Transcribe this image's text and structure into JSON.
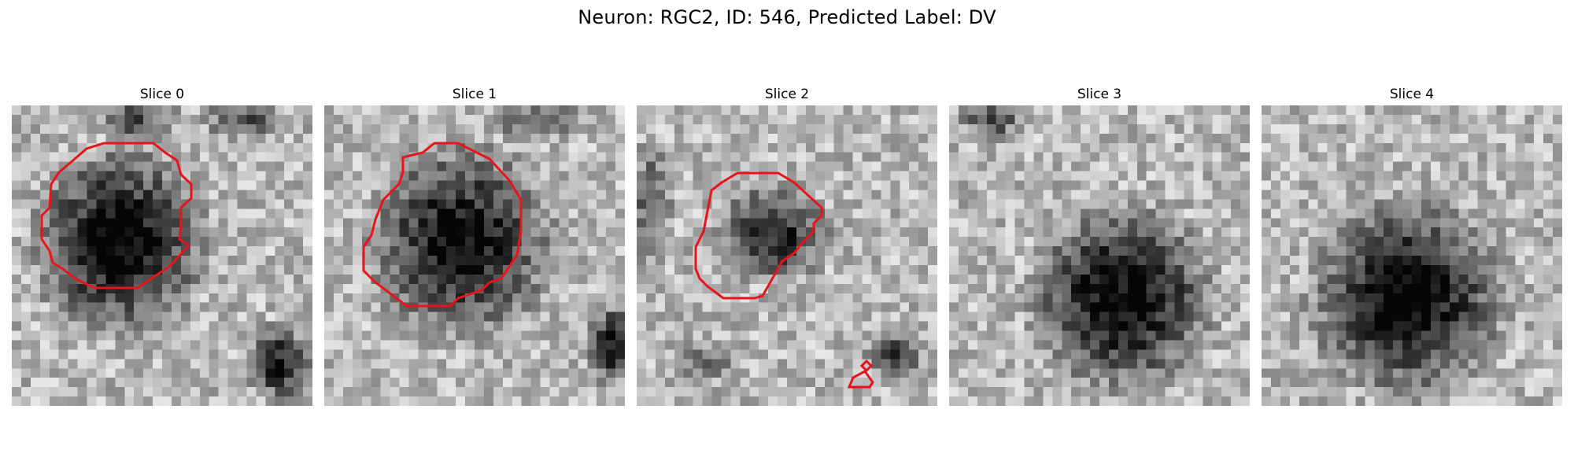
{
  "figure": {
    "title": "Neuron: RGC2, ID: 546, Predicted Label: DV"
  },
  "contour_color": "#e8141c",
  "panels": [
    {
      "title": "Slice 0",
      "has_contour": true
    },
    {
      "title": "Slice 1",
      "has_contour": true
    },
    {
      "title": "Slice 2",
      "has_contour": true
    },
    {
      "title": "Slice 3",
      "has_contour": false
    },
    {
      "title": "Slice 4",
      "has_contour": false
    }
  ]
}
